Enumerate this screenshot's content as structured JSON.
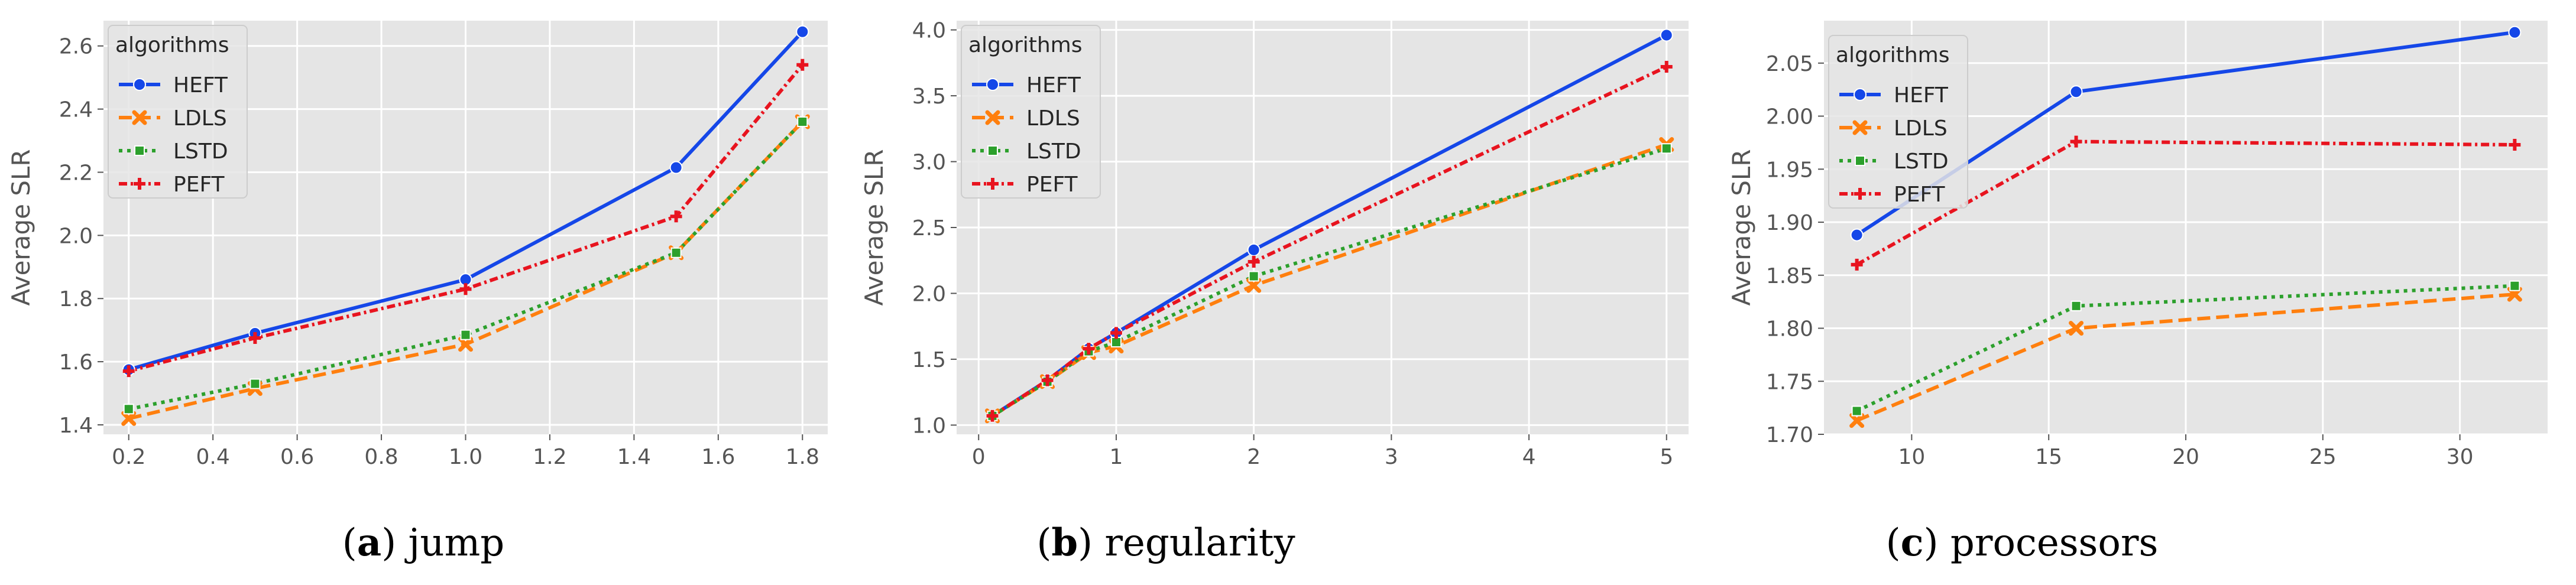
{
  "figure": {
    "panels": [
      {
        "caption_letter": "a",
        "caption_text": "jump"
      },
      {
        "caption_letter": "b",
        "caption_text": "regularity"
      },
      {
        "caption_letter": "c",
        "caption_text": "processors"
      }
    ]
  },
  "series_colors": {
    "HEFT": "#1547e8",
    "LDLS": "#ff7f0e",
    "LSTD": "#2ca02c",
    "PEFT": "#e8141f"
  },
  "chart_data": [
    {
      "type": "line",
      "title": "jump",
      "xlabel": "",
      "ylabel": "Average SLR",
      "xlim": [
        0.14,
        1.86
      ],
      "ylim": [
        1.37,
        2.68
      ],
      "xticks": [
        "0.2",
        "0.4",
        "0.6",
        "0.8",
        "1.0",
        "1.2",
        "1.4",
        "1.6",
        "1.8"
      ],
      "yticks": [
        "1.4",
        "1.6",
        "1.8",
        "2.0",
        "2.2",
        "2.4",
        "2.6"
      ],
      "x": [
        0.2,
        0.5,
        1.0,
        1.5,
        1.8
      ],
      "legend_title": "algorithms",
      "legend_position": "top-left",
      "grid": true,
      "series": [
        {
          "name": "HEFT",
          "values": [
            1.575,
            1.69,
            1.86,
            2.215,
            2.645
          ]
        },
        {
          "name": "LDLS",
          "values": [
            1.42,
            1.515,
            1.655,
            1.945,
            2.36
          ]
        },
        {
          "name": "LSTD",
          "values": [
            1.45,
            1.53,
            1.685,
            1.945,
            2.36
          ]
        },
        {
          "name": "PEFT",
          "values": [
            1.57,
            1.675,
            1.83,
            2.06,
            2.54
          ]
        }
      ]
    },
    {
      "type": "line",
      "title": "regularity",
      "xlabel": "",
      "ylabel": "Average SLR",
      "xlim": [
        -0.16,
        5.16
      ],
      "ylim": [
        0.93,
        4.07
      ],
      "xticks": [
        "0",
        "1",
        "2",
        "3",
        "4",
        "5"
      ],
      "yticks": [
        "1.0",
        "1.5",
        "2.0",
        "2.5",
        "3.0",
        "3.5",
        "4.0"
      ],
      "x": [
        0.1,
        0.5,
        0.8,
        1.0,
        2.0,
        5.0
      ],
      "legend_title": "algorithms",
      "legend_position": "top-left",
      "grid": true,
      "series": [
        {
          "name": "HEFT",
          "values": [
            1.07,
            1.34,
            1.58,
            1.7,
            2.33,
            3.96
          ]
        },
        {
          "name": "LDLS",
          "values": [
            1.07,
            1.33,
            1.55,
            1.6,
            2.06,
            3.13
          ]
        },
        {
          "name": "LSTD",
          "values": [
            1.07,
            1.33,
            1.56,
            1.63,
            2.13,
            3.1
          ]
        },
        {
          "name": "PEFT",
          "values": [
            1.07,
            1.34,
            1.58,
            1.7,
            2.24,
            3.72
          ]
        }
      ]
    },
    {
      "type": "line",
      "title": "processors",
      "xlabel": "",
      "ylabel": "Average SLR",
      "xlim": [
        6.8,
        33.2
      ],
      "ylim": [
        1.7,
        2.09
      ],
      "xticks": [
        "10",
        "15",
        "20",
        "25",
        "30"
      ],
      "yticks": [
        "1.70",
        "1.75",
        "1.80",
        "1.85",
        "1.90",
        "1.95",
        "2.00",
        "2.05"
      ],
      "x": [
        8,
        16,
        32
      ],
      "legend_title": "algorithms",
      "legend_position": "top-left",
      "grid": true,
      "series": [
        {
          "name": "HEFT",
          "values": [
            1.888,
            2.023,
            2.079
          ]
        },
        {
          "name": "LDLS",
          "values": [
            1.713,
            1.8,
            1.832
          ]
        },
        {
          "name": "LSTD",
          "values": [
            1.722,
            1.821,
            1.84
          ]
        },
        {
          "name": "PEFT",
          "values": [
            1.86,
            1.976,
            1.973
          ]
        }
      ]
    }
  ]
}
